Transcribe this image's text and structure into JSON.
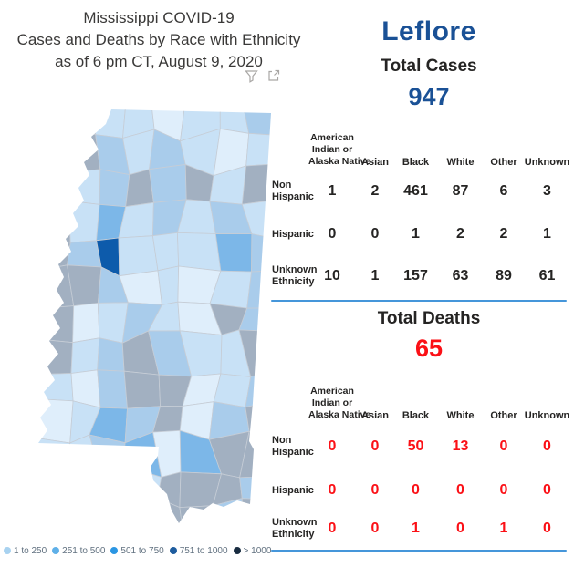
{
  "title": {
    "line1": "Mississippi COVID-19",
    "line2": "Cases and Deaths by Race with Ethnicity",
    "line3": "as of 6 pm CT, August 9, 2020"
  },
  "county_name": "Leflore",
  "table_header": {
    "aian_lines": [
      "American",
      "Indian or",
      "Alaska Native"
    ],
    "others": [
      "Asian",
      "Black",
      "White",
      "Other",
      "Unknown"
    ]
  },
  "cases": {
    "heading": "Total Cases",
    "total": "947",
    "rows": [
      {
        "label": "Non Hispanic",
        "values": [
          "1",
          "2",
          "461",
          "87",
          "6",
          "3"
        ]
      },
      {
        "label": "Hispanic",
        "values": [
          "0",
          "0",
          "1",
          "2",
          "2",
          "1"
        ]
      },
      {
        "label": "Unknown Ethnicity",
        "values": [
          "10",
          "1",
          "157",
          "63",
          "89",
          "61"
        ]
      }
    ]
  },
  "deaths": {
    "heading": "Total Deaths",
    "total": "65",
    "rows": [
      {
        "label": "Non Hispanic",
        "values": [
          "0",
          "0",
          "50",
          "13",
          "0",
          "0"
        ]
      },
      {
        "label": "Hispanic",
        "values": [
          "0",
          "0",
          "0",
          "0",
          "0",
          "0"
        ]
      },
      {
        "label": "Unknown Ethnicity",
        "values": [
          "0",
          "0",
          "1",
          "0",
          "1",
          "0"
        ]
      }
    ]
  },
  "legend": {
    "items": [
      {
        "label": "1 to 250",
        "color": "#a8d2f0"
      },
      {
        "label": "251 to 500",
        "color": "#5fb0e8"
      },
      {
        "label": "501 to 750",
        "color": "#2b96e3"
      },
      {
        "label": "751 to 1000",
        "color": "#1e5c9e"
      },
      {
        "label": "> 1000",
        "color": "#182c40"
      }
    ]
  },
  "colors": {
    "county_accent_blue": "#1a5196",
    "deaths_red": "#fb1016",
    "divider_blue": "#4596da",
    "title_text": "#3a3938",
    "table_text": "#252423",
    "legend_text": "#60707f",
    "selected_county_fill": "#0d5bab"
  },
  "map": {
    "selected_county": "Leflore",
    "palette": {
      "L": "#c8e1f6",
      "P": "#dfeefb",
      "M": "#a9cceb",
      "G": "#a2b0c1",
      "B": "#7cb7e8",
      "D": "#0d5bab"
    },
    "cells": [
      "M G L L P L L M",
      "L G M L M L P L",
      "G L M G M G L G",
      "G L B L M L M L",
      "G M D L L L B M",
      "G G M P L P L M",
      "G P L M L P G M",
      "G L M G M L L G",
      "L P M G G P L M",
      "P L B M G P M G",
      "L L M B P B G G",
      "P L B L G G G M",
      "L P L M G G M G"
    ]
  },
  "chart_data": [
    {
      "type": "heatmap",
      "subtype": "choropleth-county-map",
      "title": "Mississippi COVID-19 Cases and Deaths by Race with Ethnicity as of 6 pm CT, August 9, 2020",
      "region": "Mississippi counties",
      "selected_county": "Leflore",
      "legend_position": "bottom-left",
      "bins": [
        {
          "label": "1 to 250",
          "color": "#a8d2f0"
        },
        {
          "label": "251 to 500",
          "color": "#5fb0e8"
        },
        {
          "label": "501 to 750",
          "color": "#2b96e3"
        },
        {
          "label": "751 to 1000",
          "color": "#1e5c9e"
        },
        {
          "label": "> 1000",
          "color": "#182c40"
        }
      ]
    },
    {
      "type": "table",
      "title": "Total Cases",
      "total": 947,
      "columns": [
        "American Indian or Alaska Native",
        "Asian",
        "Black",
        "White",
        "Other",
        "Unknown"
      ],
      "rows": [
        {
          "label": "Non Hispanic",
          "values": [
            1,
            2,
            461,
            87,
            6,
            3
          ]
        },
        {
          "label": "Hispanic",
          "values": [
            0,
            0,
            1,
            2,
            2,
            1
          ]
        },
        {
          "label": "Unknown Ethnicity",
          "values": [
            10,
            1,
            157,
            63,
            89,
            61
          ]
        }
      ]
    },
    {
      "type": "table",
      "title": "Total Deaths",
      "total": 65,
      "columns": [
        "American Indian or Alaska Native",
        "Asian",
        "Black",
        "White",
        "Other",
        "Unknown"
      ],
      "rows": [
        {
          "label": "Non Hispanic",
          "values": [
            0,
            0,
            50,
            13,
            0,
            0
          ]
        },
        {
          "label": "Hispanic",
          "values": [
            0,
            0,
            0,
            0,
            0,
            0
          ]
        },
        {
          "label": "Unknown Ethnicity",
          "values": [
            0,
            0,
            1,
            0,
            1,
            0
          ]
        }
      ]
    }
  ]
}
